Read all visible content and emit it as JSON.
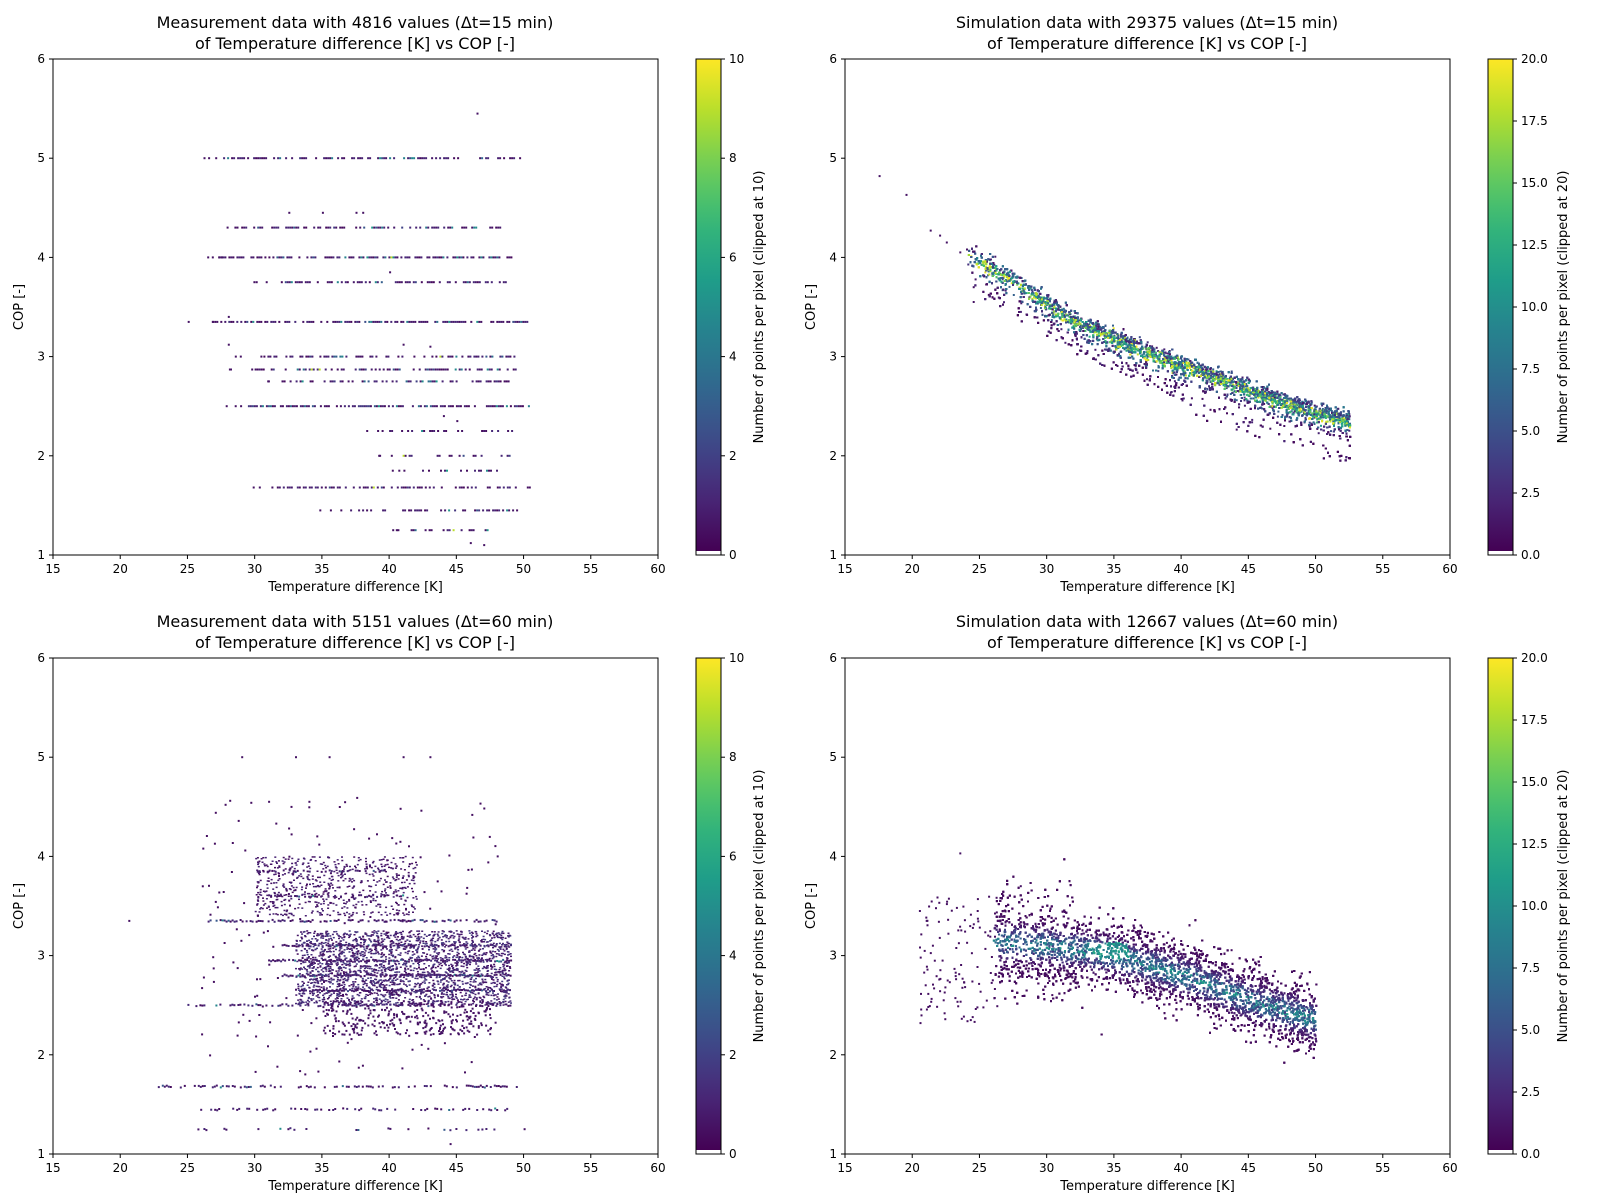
{
  "chart_data": [
    {
      "type": "heatmap",
      "title_line1": "Measurement data with 4816 values (Δt=15 min)",
      "title_line2": "of Temperature difference [K] vs COP [-]",
      "xlabel": "Temperature difference [K]",
      "ylabel": "COP [-]",
      "xlim": [
        15,
        60
      ],
      "ylim": [
        1,
        6
      ],
      "xticks": [
        15,
        20,
        25,
        30,
        35,
        40,
        45,
        50,
        55,
        60
      ],
      "yticks": [
        1,
        2,
        3,
        4,
        5,
        6
      ],
      "colorbar": {
        "label": "Number of points per pixel (clipped at 10)",
        "min": 0,
        "max": 10,
        "ticks": [
          "0",
          "2",
          "4",
          "6",
          "8",
          "10"
        ],
        "colormap": "viridis"
      },
      "pattern": "horizontal-bands",
      "bands": [
        {
          "cop": 5.0,
          "x": [
            27.5,
            50.0
          ],
          "density": 0.55
        },
        {
          "cop": 4.3,
          "x": [
            29.0,
            48.5
          ],
          "density": 0.5
        },
        {
          "cop": 4.0,
          "x": [
            27.3,
            49.5
          ],
          "density": 0.6
        },
        {
          "cop": 3.75,
          "x": [
            31.5,
            49.0
          ],
          "density": 0.55
        },
        {
          "cop": 3.35,
          "x": [
            27.0,
            50.5
          ],
          "density": 0.7
        },
        {
          "cop": 3.0,
          "x": [
            30.5,
            49.5
          ],
          "density": 0.5
        },
        {
          "cop": 2.87,
          "x": [
            30.0,
            49.5
          ],
          "density": 0.6
        },
        {
          "cop": 2.75,
          "x": [
            32.0,
            49.0
          ],
          "density": 0.45
        },
        {
          "cop": 2.5,
          "x": [
            29.5,
            50.5
          ],
          "density": 0.6
        },
        {
          "cop": 2.25,
          "x": [
            40.0,
            49.5
          ],
          "density": 0.35
        },
        {
          "cop": 2.0,
          "x": [
            41.0,
            49.0
          ],
          "density": 0.3
        },
        {
          "cop": 1.85,
          "x": [
            42.0,
            49.0
          ],
          "density": 0.3
        },
        {
          "cop": 1.68,
          "x": [
            31.5,
            50.5
          ],
          "density": 0.5
        },
        {
          "cop": 1.45,
          "x": [
            36.5,
            49.5
          ],
          "density": 0.45
        },
        {
          "cop": 1.25,
          "x": [
            41.0,
            48.0
          ],
          "density": 0.3
        }
      ]
    },
    {
      "type": "heatmap",
      "title_line1": "Simulation data with 29375 values (Δt=15 min)",
      "title_line2": "of Temperature difference [K] vs COP [-]",
      "xlabel": "Temperature difference [K]",
      "ylabel": "COP [-]",
      "xlim": [
        15,
        60
      ],
      "ylim": [
        1,
        6
      ],
      "xticks": [
        15,
        20,
        25,
        30,
        35,
        40,
        45,
        50,
        55,
        60
      ],
      "yticks": [
        1,
        2,
        3,
        4,
        5,
        6
      ],
      "colorbar": {
        "label": "Number of points per pixel (clipped at 20)",
        "min": 0,
        "max": 20,
        "ticks": [
          "0.0",
          "2.5",
          "5.0",
          "7.5",
          "10.0",
          "12.5",
          "15.0",
          "17.5",
          "20.0"
        ],
        "colormap": "viridis"
      },
      "pattern": "narrow-curve",
      "trend": [
        [
          17.5,
          4.82
        ],
        [
          22,
          4.2
        ],
        [
          25,
          3.95
        ],
        [
          28,
          3.7
        ],
        [
          32,
          3.35
        ],
        [
          36,
          3.1
        ],
        [
          40,
          2.9
        ],
        [
          44,
          2.7
        ],
        [
          48,
          2.5
        ],
        [
          52,
          2.35
        ]
      ],
      "spread": 0.08
    },
    {
      "type": "heatmap",
      "title_line1": "Measurement data with 5151 values (Δt=60 min)",
      "title_line2": "of Temperature difference [K] vs COP [-]",
      "xlabel": "Temperature difference [K]",
      "ylabel": "COP [-]",
      "xlim": [
        15,
        60
      ],
      "ylim": [
        1,
        6
      ],
      "xticks": [
        15,
        20,
        25,
        30,
        35,
        40,
        45,
        50,
        55,
        60
      ],
      "yticks": [
        1,
        2,
        3,
        4,
        5,
        6
      ],
      "colorbar": {
        "label": "Number of points per pixel (clipped at 10)",
        "min": 0,
        "max": 10,
        "ticks": [
          "0",
          "2",
          "4",
          "6",
          "8",
          "10"
        ],
        "colormap": "viridis"
      },
      "pattern": "scattered-bands",
      "bands": [
        {
          "cop": 3.35,
          "x": [
            26.5,
            48.0
          ],
          "density": 0.6
        },
        {
          "cop": 3.1,
          "x": [
            32.0,
            48.0
          ],
          "density": 0.7
        },
        {
          "cop": 2.95,
          "x": [
            31.0,
            49.0
          ],
          "density": 0.75
        },
        {
          "cop": 2.8,
          "x": [
            32.0,
            49.0
          ],
          "density": 0.8
        },
        {
          "cop": 2.65,
          "x": [
            33.0,
            49.0
          ],
          "density": 0.8
        },
        {
          "cop": 2.5,
          "x": [
            25.0,
            49.0
          ],
          "density": 0.55
        },
        {
          "cop": 3.6,
          "x": [
            31.0,
            41.0
          ],
          "density": 0.45
        },
        {
          "cop": 3.85,
          "x": [
            30.0,
            40.0
          ],
          "density": 0.3
        },
        {
          "cop": 1.68,
          "x": [
            22.5,
            49.5
          ],
          "density": 0.45
        },
        {
          "cop": 1.45,
          "x": [
            25.5,
            49.5
          ],
          "density": 0.35
        },
        {
          "cop": 1.25,
          "x": [
            25.0,
            48.5
          ],
          "density": 0.2
        }
      ]
    },
    {
      "type": "heatmap",
      "title_line1": "Simulation data with 12667 values (Δt=60 min)",
      "title_line2": "of Temperature difference [K] vs COP [-]",
      "xlabel": "Temperature difference [K]",
      "ylabel": "COP [-]",
      "xlim": [
        15,
        60
      ],
      "ylim": [
        1,
        6
      ],
      "xticks": [
        15,
        20,
        25,
        30,
        35,
        40,
        45,
        50,
        55,
        60
      ],
      "yticks": [
        1,
        2,
        3,
        4,
        5,
        6
      ],
      "colorbar": {
        "label": "Number of points per pixel (clipped at 20)",
        "min": 0,
        "max": 20,
        "ticks": [
          "0.0",
          "2.5",
          "5.0",
          "7.5",
          "10.0",
          "12.5",
          "15.0",
          "17.5",
          "20.0"
        ],
        "colormap": "viridis"
      },
      "pattern": "diffuse-cloud",
      "trend": [
        [
          21,
          3.1
        ],
        [
          25,
          3.15
        ],
        [
          30,
          3.1
        ],
        [
          35,
          3.0
        ],
        [
          40,
          2.8
        ],
        [
          45,
          2.55
        ],
        [
          50,
          2.35
        ]
      ],
      "spread": 0.3
    }
  ]
}
